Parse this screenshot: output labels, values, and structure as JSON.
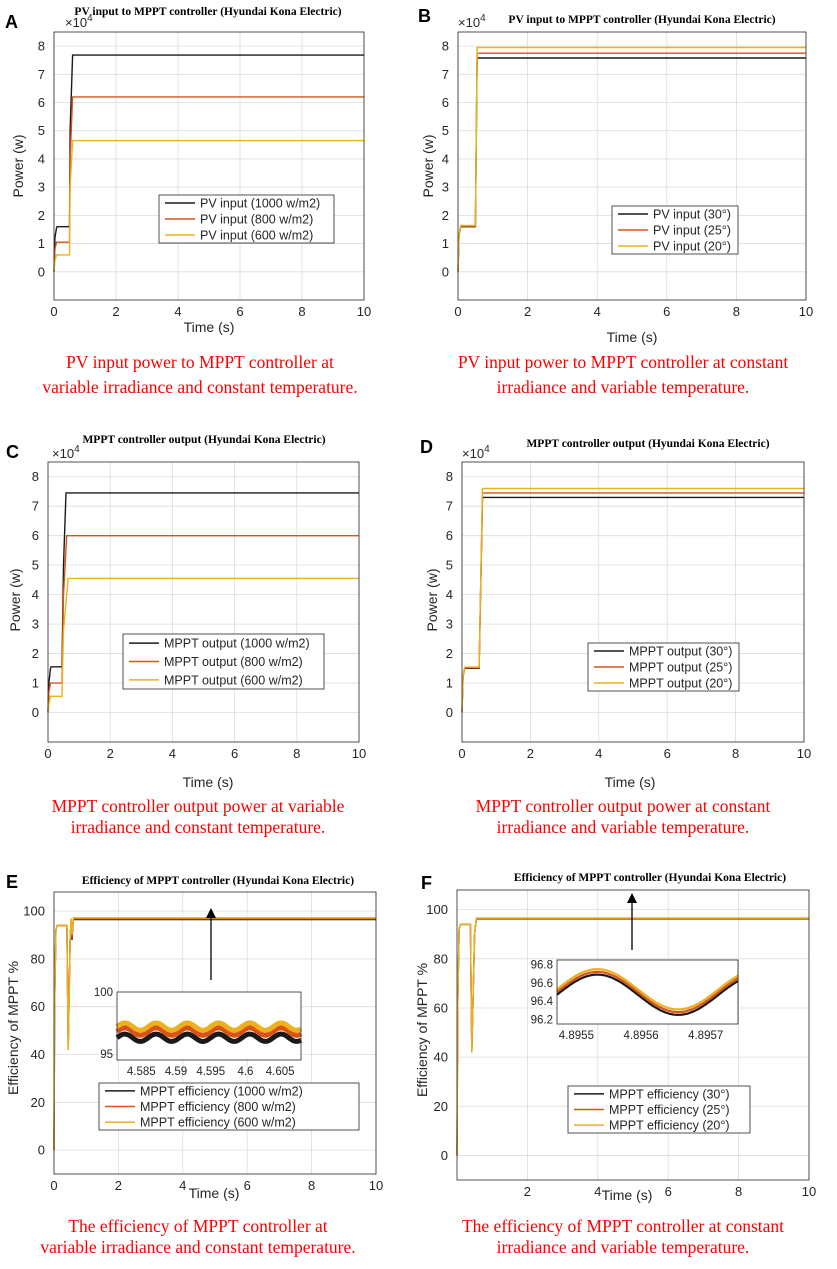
{
  "colors": {
    "series": [
      "#1a1a1a",
      "#d95319",
      "#edb120"
    ],
    "caption": "#ff0000",
    "grid": "#dcdcdc"
  },
  "chart_data": [
    {
      "type": "line",
      "panel_label": "A",
      "title": "PV input to MPPT controller (Hyundai Kona Electric)",
      "xlabel": "Time (s)",
      "ylabel": "Power (w)",
      "exponent": "4",
      "xlim": [
        0,
        10
      ],
      "ylim": [
        -1,
        8.5
      ],
      "xticks": [
        "0",
        "2",
        "4",
        "6",
        "8",
        "10"
      ],
      "xtick_values": [
        0,
        2,
        4,
        6,
        8,
        10
      ],
      "yticks": [
        "0",
        "1",
        "2",
        "3",
        "4",
        "5",
        "6",
        "7",
        "8"
      ],
      "ytick_values": [
        0,
        1,
        2,
        3,
        4,
        5,
        6,
        7,
        8
      ],
      "series": [
        {
          "name": "PV input (1000 w/m2)",
          "x": [
            0,
            0.03,
            0.08,
            0.1,
            0.5,
            0.52,
            0.6,
            10
          ],
          "y": [
            0,
            1.2,
            1.55,
            1.6,
            1.6,
            5.0,
            7.68,
            7.68
          ]
        },
        {
          "name": "PV input (800 w/m2)",
          "x": [
            0,
            0.03,
            0.08,
            0.1,
            0.5,
            0.52,
            0.6,
            10
          ],
          "y": [
            0,
            0.8,
            1.05,
            1.05,
            1.05,
            4.0,
            6.2,
            6.2
          ]
        },
        {
          "name": "PV input (600 w/m2)",
          "x": [
            0,
            0.03,
            0.08,
            0.1,
            0.5,
            0.52,
            0.6,
            10
          ],
          "y": [
            0,
            0.4,
            0.6,
            0.6,
            0.6,
            3.0,
            4.65,
            4.65
          ]
        }
      ],
      "legend_position": "center"
    },
    {
      "type": "line",
      "panel_label": "B",
      "title": "PV input to MPPT controller (Hyundai Kona Electric)",
      "xlabel": "Time (s)",
      "ylabel": "Power (w)",
      "exponent": "4",
      "xlim": [
        0,
        10
      ],
      "ylim": [
        -1,
        8.5
      ],
      "xticks": [
        "0",
        "2",
        "4",
        "6",
        "8",
        "10"
      ],
      "xtick_values": [
        0,
        2,
        4,
        6,
        8,
        10
      ],
      "yticks": [
        "0",
        "1",
        "2",
        "3",
        "4",
        "5",
        "6",
        "7",
        "8"
      ],
      "ytick_values": [
        0,
        1,
        2,
        3,
        4,
        5,
        6,
        7,
        8
      ],
      "series": [
        {
          "name": "PV input (30°)",
          "x": [
            0,
            0.03,
            0.08,
            0.1,
            0.5,
            0.55,
            10
          ],
          "y": [
            0,
            1.3,
            1.6,
            1.6,
            1.6,
            7.58,
            7.58
          ]
        },
        {
          "name": "PV input (25°)",
          "x": [
            0,
            0.03,
            0.08,
            0.1,
            0.5,
            0.55,
            10
          ],
          "y": [
            0,
            1.3,
            1.62,
            1.62,
            1.62,
            7.75,
            7.75
          ]
        },
        {
          "name": "PV input (20°)",
          "x": [
            0,
            0.03,
            0.08,
            0.1,
            0.5,
            0.55,
            10
          ],
          "y": [
            0,
            1.3,
            1.64,
            1.64,
            1.64,
            7.95,
            7.95
          ]
        }
      ],
      "legend_position": "center"
    },
    {
      "type": "line",
      "panel_label": "C",
      "title": "MPPT controller output (Hyundai Kona Electric)",
      "xlabel": "Time (s)",
      "ylabel": "Power (w)",
      "exponent": "4",
      "xlim": [
        0,
        10
      ],
      "ylim": [
        -1,
        8.5
      ],
      "xticks": [
        "0",
        "2",
        "4",
        "6",
        "8",
        "10"
      ],
      "xtick_values": [
        0,
        2,
        4,
        6,
        8,
        10
      ],
      "yticks": [
        "0",
        "1",
        "2",
        "3",
        "4",
        "5",
        "6",
        "7",
        "8"
      ],
      "ytick_values": [
        0,
        1,
        2,
        3,
        4,
        5,
        6,
        7,
        8
      ],
      "series": [
        {
          "name": "MPPT output (1000 w/m2)",
          "x": [
            0,
            0.03,
            0.08,
            0.1,
            0.45,
            0.5,
            0.58,
            10
          ],
          "y": [
            0,
            1.0,
            1.5,
            1.55,
            1.55,
            5.0,
            7.45,
            7.45
          ]
        },
        {
          "name": "MPPT output (800 w/m2)",
          "x": [
            0,
            0.03,
            0.08,
            0.1,
            0.45,
            0.5,
            0.6,
            10
          ],
          "y": [
            0,
            0.7,
            1.0,
            1.0,
            1.0,
            4.0,
            6.0,
            6.0
          ]
        },
        {
          "name": "MPPT output (600 w/m2)",
          "x": [
            0,
            0.03,
            0.08,
            0.1,
            0.45,
            0.5,
            0.65,
            10
          ],
          "y": [
            0,
            0.3,
            0.55,
            0.55,
            0.55,
            2.8,
            4.55,
            4.55
          ]
        }
      ],
      "legend_position": "bottom-center"
    },
    {
      "type": "line",
      "panel_label": "D",
      "title": "MPPT controller output (Hyundai Kona Electric)",
      "xlabel": "Time (s)",
      "ylabel": "Power (w)",
      "exponent": "4",
      "xlim": [
        0,
        10
      ],
      "ylim": [
        -1,
        8.5
      ],
      "xticks": [
        "0",
        "2",
        "4",
        "6",
        "8",
        "10"
      ],
      "xtick_values": [
        0,
        2,
        4,
        6,
        8,
        10
      ],
      "yticks": [
        "0",
        "1",
        "2",
        "3",
        "4",
        "5",
        "6",
        "7",
        "8"
      ],
      "ytick_values": [
        0,
        1,
        2,
        3,
        4,
        5,
        6,
        7,
        8
      ],
      "series": [
        {
          "name": "MPPT output (30°)",
          "x": [
            0,
            0.03,
            0.08,
            0.1,
            0.5,
            0.6,
            10
          ],
          "y": [
            0,
            1.2,
            1.5,
            1.5,
            1.5,
            7.3,
            7.3
          ]
        },
        {
          "name": "MPPT output (25°)",
          "x": [
            0,
            0.03,
            0.08,
            0.1,
            0.5,
            0.6,
            10
          ],
          "y": [
            0,
            1.2,
            1.52,
            1.52,
            1.52,
            7.45,
            7.45
          ]
        },
        {
          "name": "MPPT output (20°)",
          "x": [
            0,
            0.03,
            0.08,
            0.1,
            0.5,
            0.6,
            10
          ],
          "y": [
            0,
            1.2,
            1.54,
            1.54,
            1.54,
            7.6,
            7.6
          ]
        }
      ],
      "legend_position": "bottom-center"
    },
    {
      "type": "line",
      "panel_label": "E",
      "title": "Efficiency of MPPT controller (Hyundai Kona Electric)",
      "xlabel": "Time (s)",
      "ylabel": "Efficiency of MPPT %",
      "xlim": [
        0,
        10
      ],
      "ylim": [
        -10,
        108
      ],
      "xticks": [
        "0",
        "2",
        "4",
        "6",
        "8",
        "10"
      ],
      "xtick_values": [
        0,
        2,
        4,
        6,
        8,
        10
      ],
      "yticks": [
        "0",
        "20",
        "40",
        "60",
        "80",
        "100"
      ],
      "ytick_values": [
        0,
        20,
        40,
        60,
        80,
        100
      ],
      "series": [
        {
          "name": "MPPT efficiency (1000 w/m2)",
          "x": [
            0,
            0.02,
            0.06,
            0.1,
            0.4,
            0.44,
            0.5,
            0.53,
            0.56,
            0.6,
            10
          ],
          "y": [
            0,
            60,
            92,
            94,
            94,
            42,
            88,
            96,
            88,
            96.5,
            96.5
          ]
        },
        {
          "name": "MPPT efficiency (800 w/m2)",
          "x": [
            0,
            0.02,
            0.06,
            0.1,
            0.4,
            0.44,
            0.5,
            0.53,
            0.56,
            0.6,
            10
          ],
          "y": [
            0,
            60,
            92,
            94,
            94,
            42,
            88,
            96.5,
            89,
            96.8,
            96.8
          ]
        },
        {
          "name": "MPPT efficiency (600 w/m2)",
          "x": [
            0,
            0.02,
            0.06,
            0.1,
            0.4,
            0.44,
            0.5,
            0.53,
            0.56,
            0.6,
            10
          ],
          "y": [
            0,
            60,
            92,
            94,
            94,
            42,
            88,
            97,
            90,
            97.2,
            97.2
          ]
        }
      ],
      "legend_position": "bottom-center",
      "inset": {
        "xlim": [
          4.5815,
          4.608
        ],
        "ylim": [
          94.5,
          100
        ],
        "xticks": [
          "4.585",
          "4.59",
          "4.595",
          "4.6",
          "4.605"
        ],
        "xtick_values": [
          4.585,
          4.59,
          4.595,
          4.6,
          4.605
        ],
        "yticks": [
          "95",
          "100"
        ],
        "ytick_values": [
          95,
          100
        ],
        "series_base": [
          96.3,
          96.8,
          97.2
        ],
        "ripple": 0.3,
        "period": 0.0045
      }
    },
    {
      "type": "line",
      "panel_label": "F",
      "title": "Efficiency of MPPT controller (Hyundai Kona Electric)",
      "xlabel": "Time (s)",
      "ylabel": "Efficiency of MPPT %",
      "xlim": [
        0,
        10
      ],
      "ylim": [
        -10,
        108
      ],
      "xticks": [
        "2",
        "4",
        "6",
        "8",
        "10"
      ],
      "xtick_values": [
        2,
        4,
        6,
        8,
        10
      ],
      "yticks": [
        "0",
        "20",
        "40",
        "60",
        "80",
        "100"
      ],
      "ytick_values": [
        0,
        20,
        40,
        60,
        80,
        100
      ],
      "series": [
        {
          "name": "MPPT efficiency (30°)",
          "x": [
            0,
            0.02,
            0.06,
            0.1,
            0.38,
            0.42,
            0.5,
            0.55,
            10
          ],
          "y": [
            0,
            60,
            92,
            94,
            94,
            42,
            90,
            96.3,
            96.3
          ]
        },
        {
          "name": "MPPT efficiency (25°)",
          "x": [
            0,
            0.02,
            0.06,
            0.1,
            0.38,
            0.42,
            0.5,
            0.55,
            10
          ],
          "y": [
            0,
            60,
            92,
            94,
            94,
            42,
            90,
            96.5,
            96.5
          ]
        },
        {
          "name": "MPPT efficiency (20°)",
          "x": [
            0,
            0.02,
            0.06,
            0.1,
            0.38,
            0.42,
            0.5,
            0.55,
            10
          ],
          "y": [
            0,
            60,
            92,
            94,
            94,
            42,
            90,
            96.6,
            96.6
          ]
        }
      ],
      "legend_position": "bottom-center",
      "inset": {
        "xlim": [
          4.89547,
          4.89575
        ],
        "ylim": [
          96.15,
          96.85
        ],
        "xticks": [
          "4.8955",
          "4.8956",
          "4.8957"
        ],
        "xtick_values": [
          4.8955,
          4.8956,
          4.8957
        ],
        "yticks": [
          "96.2",
          "96.4",
          "96.6",
          "96.8"
        ],
        "ytick_values": [
          96.2,
          96.4,
          96.6,
          96.8
        ],
        "series_base": [
          96.47,
          96.5,
          96.53
        ],
        "ripple": 0.22,
        "period": 0.00025
      }
    }
  ],
  "captions": [
    {
      "line1": "PV input power to MPPT controller at",
      "line2": "variable irradiance and constant temperature."
    },
    {
      "line1": "PV input power to MPPT controller at constant",
      "line2": "irradiance and variable temperature."
    },
    {
      "line1": "MPPT controller output power at variable",
      "line2": "irradiance and constant temperature."
    },
    {
      "line1": "MPPT controller output power at constant",
      "line2": "irradiance and variable temperature."
    },
    {
      "line1": "The efficiency of MPPT controller at",
      "line2": "variable irradiance and constant temperature."
    },
    {
      "line1": "The efficiency of MPPT controller at constant",
      "line2": "irradiance and variable temperature."
    }
  ]
}
